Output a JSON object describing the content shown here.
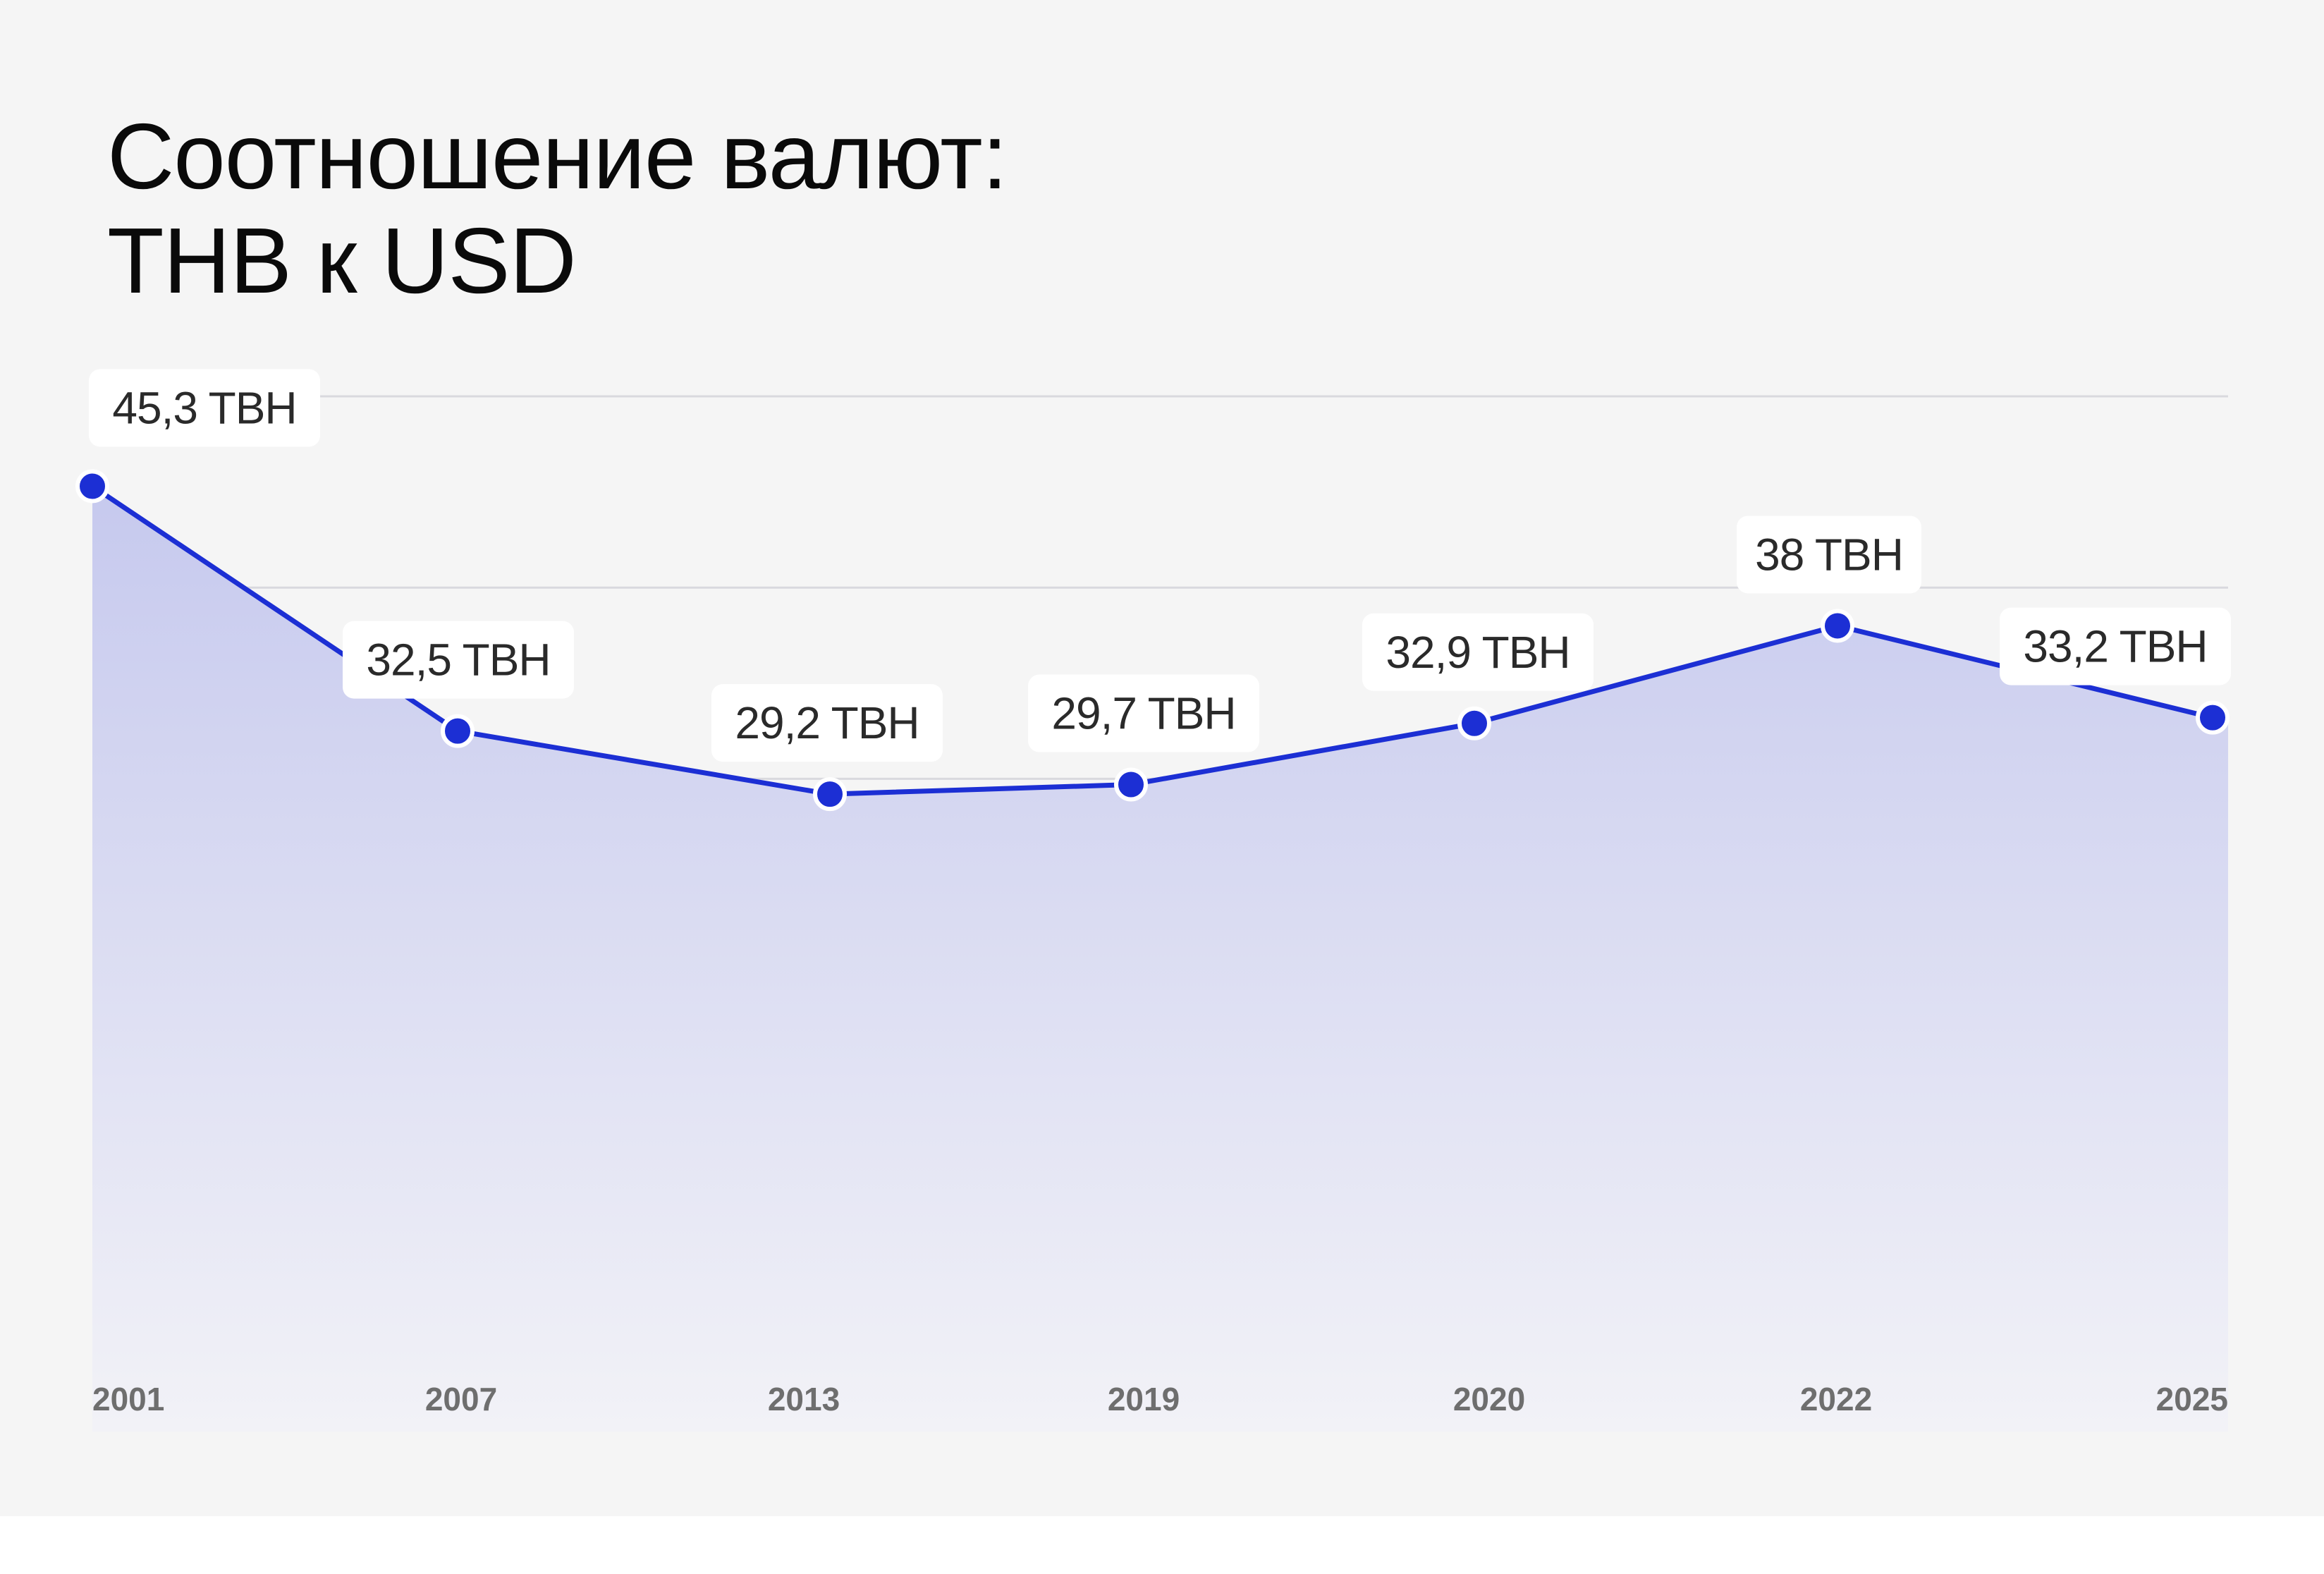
{
  "title_lines": [
    "Соотношение валют:",
    "THB к USD"
  ],
  "colors": {
    "background": "#f5f5f5",
    "line": "#1c2fd4",
    "point": "#1c2fd4",
    "area_top": "#c6c9ee",
    "area_bottom": "#f2f2f7",
    "grid": "#d9d9de",
    "label_bg": "#ffffff",
    "label_text": "#2a2a2a",
    "axis_text": "#6e6e6e"
  },
  "chart_data": {
    "type": "area",
    "title": "Соотношение валют: THB к USD",
    "xlabel": "",
    "ylabel": "",
    "grid": true,
    "legend": "none",
    "ylim": [
      0,
      50
    ],
    "categories": [
      "2001",
      "2007",
      "2013",
      "2019",
      "2020",
      "2022",
      "2025"
    ],
    "series": [
      {
        "values": [
          45.3,
          32.5,
          29.2,
          29.7,
          32.9,
          38,
          33.2
        ],
        "labels": [
          "45,3 TBH",
          "32,5 TBH",
          "29,2 TBH",
          "29,7 TBH",
          "32,9 TBH",
          "38 TBH",
          "33,2 TBH"
        ]
      }
    ]
  }
}
